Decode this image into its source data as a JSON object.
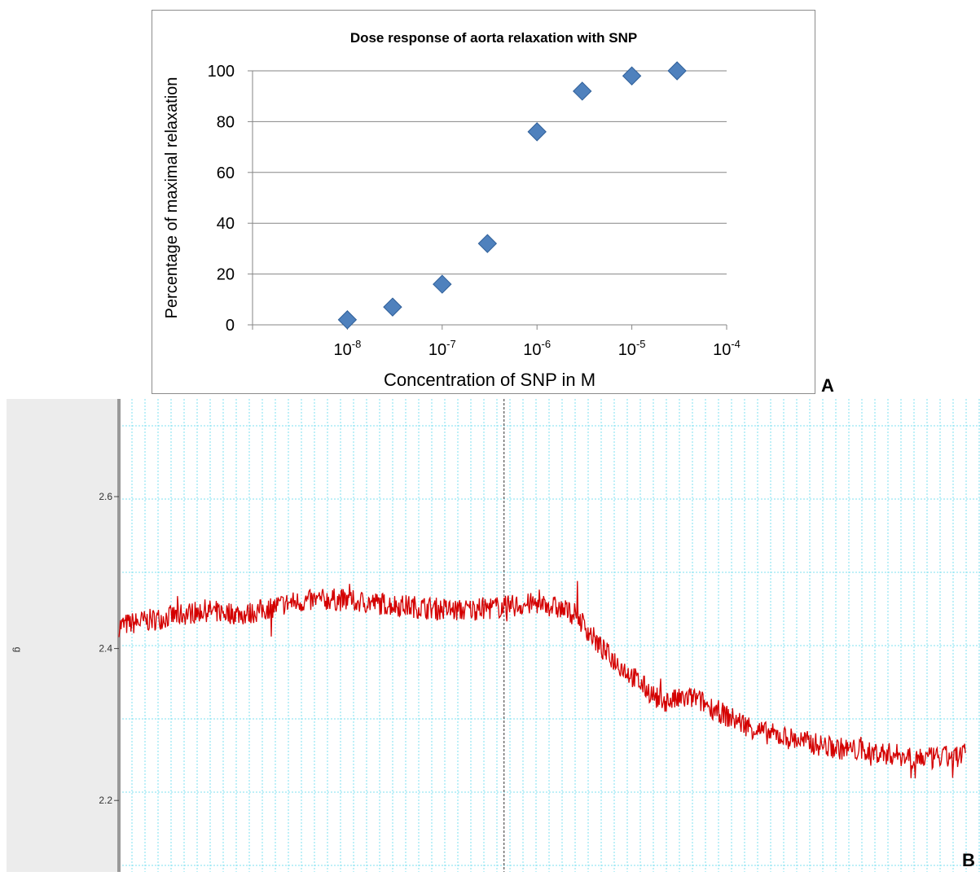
{
  "chart_data": [
    {
      "type": "scatter",
      "title": "Dose response of aorta relaxation with SNP",
      "xlabel": "Concentration of SNP in M",
      "ylabel": "Percentage of maximal relaxation",
      "x_scale": "log",
      "xlim": [
        1e-09,
        0.0001
      ],
      "ylim": [
        0,
        100
      ],
      "x_tick_labels": [
        {
          "base": "10",
          "exp": "-8"
        },
        {
          "base": "10",
          "exp": "-7"
        },
        {
          "base": "10",
          "exp": "-6"
        },
        {
          "base": "10",
          "exp": "-5"
        },
        {
          "base": "10",
          "exp": "-4"
        }
      ],
      "y_ticks": [
        "0",
        "20",
        "40",
        "60",
        "80",
        "100"
      ],
      "grid": "horizontal",
      "marker": "diamond",
      "marker_color": "#4F81BD",
      "points": [
        {
          "x": 1e-08,
          "y": 2
        },
        {
          "x": 3e-08,
          "y": 7
        },
        {
          "x": 1e-07,
          "y": 16
        },
        {
          "x": 3e-07,
          "y": 32
        },
        {
          "x": 1e-06,
          "y": 76
        },
        {
          "x": 3e-06,
          "y": 92
        },
        {
          "x": 1e-05,
          "y": 98
        },
        {
          "x": 3e-05,
          "y": 100
        }
      ],
      "panel_label": "A"
    },
    {
      "type": "line",
      "ylabel": "g",
      "y_ticks": [
        "2.6",
        "2.4",
        "2.2"
      ],
      "ylim": [
        2.1,
        2.72
      ],
      "grid": "both",
      "grid_color": "#7FE0F0",
      "line_color": "#D40000",
      "marker_time": 0.455,
      "trace": {
        "t": [
          0.0,
          0.05,
          0.1,
          0.15,
          0.2,
          0.25,
          0.3,
          0.35,
          0.4,
          0.455,
          0.5,
          0.54,
          0.57,
          0.6,
          0.64,
          0.68,
          0.72,
          0.76,
          0.8,
          0.84,
          0.88,
          0.92,
          0.96,
          1.0
        ],
        "value": [
          2.43,
          2.44,
          2.45,
          2.445,
          2.46,
          2.465,
          2.46,
          2.455,
          2.45,
          2.455,
          2.46,
          2.445,
          2.4,
          2.37,
          2.33,
          2.335,
          2.31,
          2.29,
          2.28,
          2.27,
          2.265,
          2.26,
          2.255,
          2.26
        ]
      },
      "panel_label": "B"
    }
  ]
}
